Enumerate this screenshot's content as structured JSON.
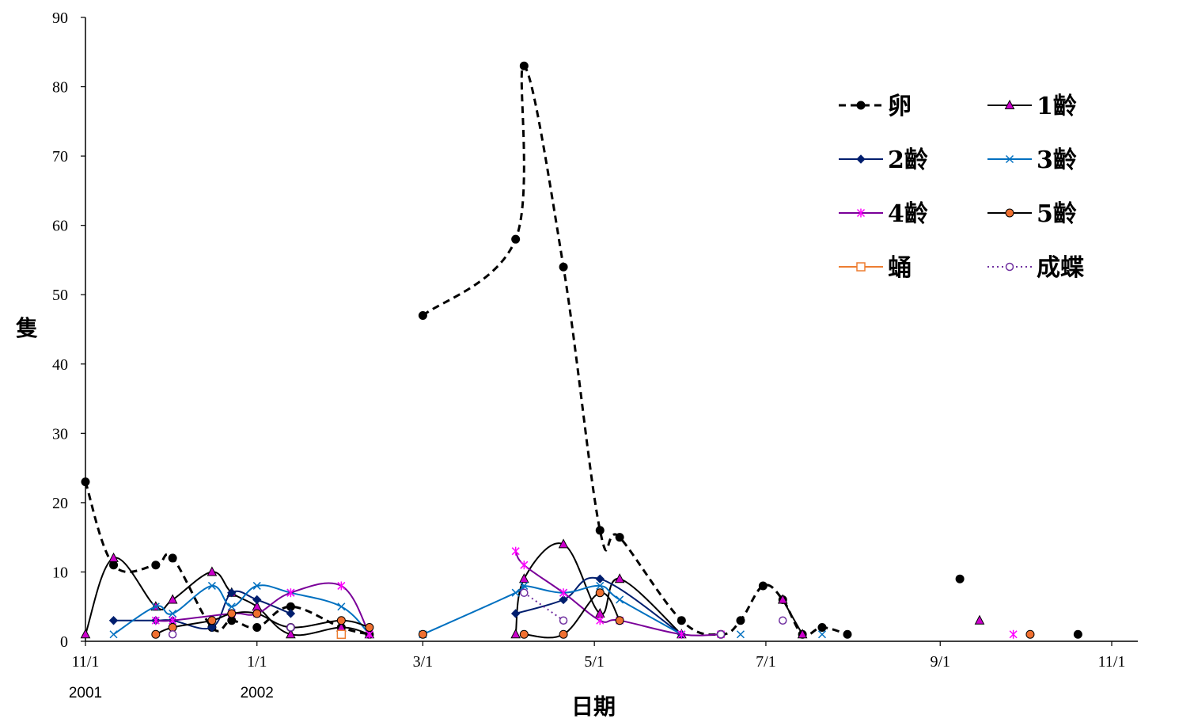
{
  "chart_data": {
    "type": "line",
    "title": "",
    "xlabel": "日期",
    "ylabel": "隻",
    "ylim": [
      0,
      90
    ],
    "yticks": [
      0,
      10,
      20,
      30,
      40,
      50,
      60,
      70,
      80,
      90
    ],
    "xlim": [
      "2001-11-01",
      "2002-11-01"
    ],
    "xticks": [
      {
        "date": "2001-11-01",
        "label": "11/1",
        "year": "2001"
      },
      {
        "date": "2002-01-01",
        "label": "1/1",
        "year": "2002"
      },
      {
        "date": "2002-03-01",
        "label": "3/1",
        "year": ""
      },
      {
        "date": "2002-05-01",
        "label": "5/1",
        "year": ""
      },
      {
        "date": "2002-07-01",
        "label": "7/1",
        "year": ""
      },
      {
        "date": "2002-09-01",
        "label": "9/1",
        "year": ""
      },
      {
        "date": "2002-11-01",
        "label": "11/1",
        "year": ""
      }
    ],
    "grid": false,
    "legend": "top-right",
    "series": [
      {
        "name": "卵",
        "color": "#000000",
        "dash": "dashed",
        "marker": "dot-filled",
        "marker_color": "#000000",
        "segments": [
          [
            [
              "2001-11-01",
              23
            ],
            [
              "2001-11-11",
              11
            ],
            [
              "2001-11-26",
              11
            ],
            [
              "2001-12-02",
              12
            ],
            [
              "2001-12-16",
              2
            ],
            [
              "2001-12-23",
              3
            ],
            [
              "2002-01-01",
              2
            ],
            [
              "2002-01-13",
              5
            ],
            [
              "2002-01-31",
              2
            ],
            [
              "2002-02-10",
              1
            ]
          ],
          [
            [
              "2002-03-01",
              47
            ],
            [
              "2002-04-03",
              58
            ],
            [
              "2002-04-06",
              83
            ],
            [
              "2002-04-20",
              54
            ],
            [
              "2002-05-03",
              16
            ],
            [
              "2002-05-10",
              15
            ],
            [
              "2002-06-01",
              3
            ],
            [
              "2002-06-15",
              1
            ],
            [
              "2002-06-22",
              3
            ],
            [
              "2002-06-30",
              8
            ],
            [
              "2002-07-07",
              6
            ],
            [
              "2002-07-14",
              1
            ],
            [
              "2002-07-21",
              2
            ],
            [
              "2002-07-30",
              1
            ]
          ],
          [
            [
              "2002-09-08",
              9
            ]
          ],
          [
            [
              "2002-10-20",
              1
            ]
          ]
        ]
      },
      {
        "name": "1齡",
        "color": "#000000",
        "dash": "solid",
        "marker": "triangle",
        "marker_color": "#cc00cc",
        "segments": [
          [
            [
              "2001-11-01",
              1
            ],
            [
              "2001-11-11",
              12
            ],
            [
              "2001-11-26",
              5
            ],
            [
              "2001-12-02",
              6
            ],
            [
              "2001-12-16",
              10
            ],
            [
              "2001-12-23",
              7
            ],
            [
              "2002-01-01",
              5
            ],
            [
              "2002-01-13",
              1
            ],
            [
              "2002-01-31",
              2
            ],
            [
              "2002-02-10",
              1
            ]
          ],
          [
            [
              "2002-04-03",
              1
            ],
            [
              "2002-04-06",
              9
            ],
            [
              "2002-04-20",
              14
            ],
            [
              "2002-05-03",
              4
            ],
            [
              "2002-05-10",
              9
            ],
            [
              "2002-06-01",
              1
            ]
          ],
          [
            [
              "2002-07-07",
              6
            ],
            [
              "2002-07-14",
              1
            ]
          ],
          [
            [
              "2002-09-15",
              3
            ]
          ]
        ]
      },
      {
        "name": "2齡",
        "color": "#001e6e",
        "dash": "solid",
        "marker": "diamond",
        "marker_color": "#001e6e",
        "segments": [
          [
            [
              "2001-11-11",
              3
            ],
            [
              "2001-11-26",
              3
            ],
            [
              "2001-12-02",
              3
            ],
            [
              "2001-12-16",
              2
            ],
            [
              "2001-12-23",
              7
            ],
            [
              "2002-01-01",
              6
            ],
            [
              "2002-01-13",
              4
            ]
          ],
          [
            [
              "2002-04-03",
              4
            ],
            [
              "2002-04-20",
              6
            ],
            [
              "2002-05-03",
              9
            ],
            [
              "2002-06-01",
              1
            ]
          ]
        ]
      },
      {
        "name": "3齡",
        "color": "#0070c0",
        "dash": "solid",
        "marker": "x",
        "marker_color": "#0070c0",
        "segments": [
          [
            [
              "2001-11-11",
              1
            ],
            [
              "2001-11-26",
              5
            ],
            [
              "2001-12-02",
              4
            ],
            [
              "2001-12-16",
              8
            ],
            [
              "2001-12-23",
              5
            ],
            [
              "2002-01-01",
              8
            ],
            [
              "2002-01-13",
              7
            ],
            [
              "2002-01-31",
              5
            ],
            [
              "2002-02-10",
              1
            ]
          ],
          [
            [
              "2002-03-01",
              1
            ],
            [
              "2002-04-03",
              7
            ],
            [
              "2002-04-06",
              8
            ],
            [
              "2002-04-20",
              7
            ],
            [
              "2002-05-03",
              8
            ],
            [
              "2002-05-10",
              6
            ],
            [
              "2002-06-01",
              1
            ]
          ],
          [
            [
              "2002-06-22",
              1
            ]
          ],
          [
            [
              "2002-07-21",
              1
            ]
          ]
        ]
      },
      {
        "name": "4齡",
        "color": "#7a0099",
        "dash": "solid",
        "marker": "star",
        "marker_color": "#ff00ff",
        "segments": [
          [
            [
              "2001-11-26",
              3
            ],
            [
              "2001-12-02",
              3
            ],
            [
              "2001-12-23",
              4
            ],
            [
              "2002-01-01",
              4
            ],
            [
              "2002-01-13",
              7
            ],
            [
              "2002-01-31",
              8
            ],
            [
              "2002-02-10",
              1
            ]
          ],
          [
            [
              "2002-04-03",
              13
            ],
            [
              "2002-04-06",
              11
            ],
            [
              "2002-04-20",
              7
            ],
            [
              "2002-05-03",
              3
            ],
            [
              "2002-05-10",
              3
            ],
            [
              "2002-06-01",
              1
            ],
            [
              "2002-06-15",
              1
            ]
          ],
          [
            [
              "2002-09-27",
              1
            ]
          ]
        ]
      },
      {
        "name": "5齡",
        "color": "#000000",
        "dash": "solid",
        "marker": "dot-filled",
        "marker_color": "#f07030",
        "segments": [
          [
            [
              "2001-11-26",
              1
            ],
            [
              "2001-12-02",
              2
            ],
            [
              "2001-12-16",
              3
            ],
            [
              "2001-12-23",
              4
            ],
            [
              "2002-01-01",
              4
            ],
            [
              "2002-01-13",
              2
            ],
            [
              "2002-01-31",
              3
            ],
            [
              "2002-02-10",
              2
            ]
          ],
          [
            [
              "2002-03-01",
              1
            ]
          ],
          [
            [
              "2002-04-06",
              1
            ],
            [
              "2002-04-20",
              1
            ],
            [
              "2002-05-03",
              7
            ],
            [
              "2002-05-10",
              3
            ]
          ],
          [
            [
              "2002-10-03",
              1
            ]
          ]
        ]
      },
      {
        "name": "蛹",
        "color": "#ed7d31",
        "dash": "solid",
        "marker": "square-open",
        "marker_color": "#ed7d31",
        "segments": [
          [
            [
              "2002-01-31",
              1
            ]
          ]
        ]
      },
      {
        "name": "成蝶",
        "color": "#7030a0",
        "dash": "dotted",
        "marker": "dot-open",
        "marker_color": "#7030a0",
        "segments": [
          [
            [
              "2001-12-02",
              1
            ]
          ],
          [
            [
              "2002-01-13",
              2
            ]
          ],
          [
            [
              "2002-04-06",
              7
            ],
            [
              "2002-04-20",
              3
            ]
          ],
          [
            [
              "2002-06-15",
              1
            ]
          ],
          [
            [
              "2002-07-07",
              3
            ]
          ]
        ]
      }
    ]
  }
}
